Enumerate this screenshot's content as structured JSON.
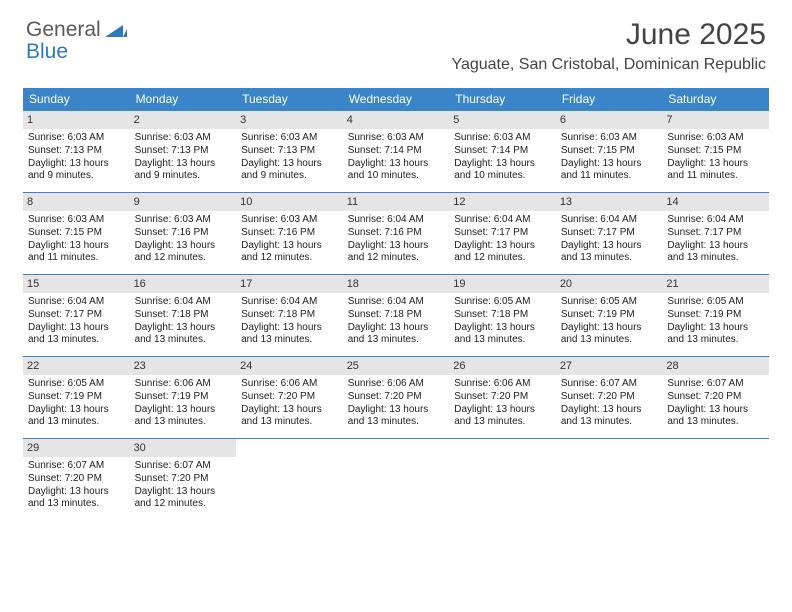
{
  "brand": {
    "part1": "General",
    "part2": "Blue"
  },
  "title": "June 2025",
  "location": "Yaguate, San Cristobal, Dominican Republic",
  "colors": {
    "header_bg": "#3a85c9",
    "daynum_bg": "#e5e5e5",
    "brand_blue": "#2f78bf",
    "rule": "#3a85c9"
  },
  "weekdays": [
    "Sunday",
    "Monday",
    "Tuesday",
    "Wednesday",
    "Thursday",
    "Friday",
    "Saturday"
  ],
  "weeks": [
    [
      {
        "n": "1",
        "sr": "6:03 AM",
        "ss": "7:13 PM",
        "dl": "13 hours and 9 minutes."
      },
      {
        "n": "2",
        "sr": "6:03 AM",
        "ss": "7:13 PM",
        "dl": "13 hours and 9 minutes."
      },
      {
        "n": "3",
        "sr": "6:03 AM",
        "ss": "7:13 PM",
        "dl": "13 hours and 9 minutes."
      },
      {
        "n": "4",
        "sr": "6:03 AM",
        "ss": "7:14 PM",
        "dl": "13 hours and 10 minutes."
      },
      {
        "n": "5",
        "sr": "6:03 AM",
        "ss": "7:14 PM",
        "dl": "13 hours and 10 minutes."
      },
      {
        "n": "6",
        "sr": "6:03 AM",
        "ss": "7:15 PM",
        "dl": "13 hours and 11 minutes."
      },
      {
        "n": "7",
        "sr": "6:03 AM",
        "ss": "7:15 PM",
        "dl": "13 hours and 11 minutes."
      }
    ],
    [
      {
        "n": "8",
        "sr": "6:03 AM",
        "ss": "7:15 PM",
        "dl": "13 hours and 11 minutes."
      },
      {
        "n": "9",
        "sr": "6:03 AM",
        "ss": "7:16 PM",
        "dl": "13 hours and 12 minutes."
      },
      {
        "n": "10",
        "sr": "6:03 AM",
        "ss": "7:16 PM",
        "dl": "13 hours and 12 minutes."
      },
      {
        "n": "11",
        "sr": "6:04 AM",
        "ss": "7:16 PM",
        "dl": "13 hours and 12 minutes."
      },
      {
        "n": "12",
        "sr": "6:04 AM",
        "ss": "7:17 PM",
        "dl": "13 hours and 12 minutes."
      },
      {
        "n": "13",
        "sr": "6:04 AM",
        "ss": "7:17 PM",
        "dl": "13 hours and 13 minutes."
      },
      {
        "n": "14",
        "sr": "6:04 AM",
        "ss": "7:17 PM",
        "dl": "13 hours and 13 minutes."
      }
    ],
    [
      {
        "n": "15",
        "sr": "6:04 AM",
        "ss": "7:17 PM",
        "dl": "13 hours and 13 minutes."
      },
      {
        "n": "16",
        "sr": "6:04 AM",
        "ss": "7:18 PM",
        "dl": "13 hours and 13 minutes."
      },
      {
        "n": "17",
        "sr": "6:04 AM",
        "ss": "7:18 PM",
        "dl": "13 hours and 13 minutes."
      },
      {
        "n": "18",
        "sr": "6:04 AM",
        "ss": "7:18 PM",
        "dl": "13 hours and 13 minutes."
      },
      {
        "n": "19",
        "sr": "6:05 AM",
        "ss": "7:18 PM",
        "dl": "13 hours and 13 minutes."
      },
      {
        "n": "20",
        "sr": "6:05 AM",
        "ss": "7:19 PM",
        "dl": "13 hours and 13 minutes."
      },
      {
        "n": "21",
        "sr": "6:05 AM",
        "ss": "7:19 PM",
        "dl": "13 hours and 13 minutes."
      }
    ],
    [
      {
        "n": "22",
        "sr": "6:05 AM",
        "ss": "7:19 PM",
        "dl": "13 hours and 13 minutes."
      },
      {
        "n": "23",
        "sr": "6:06 AM",
        "ss": "7:19 PM",
        "dl": "13 hours and 13 minutes."
      },
      {
        "n": "24",
        "sr": "6:06 AM",
        "ss": "7:20 PM",
        "dl": "13 hours and 13 minutes."
      },
      {
        "n": "25",
        "sr": "6:06 AM",
        "ss": "7:20 PM",
        "dl": "13 hours and 13 minutes."
      },
      {
        "n": "26",
        "sr": "6:06 AM",
        "ss": "7:20 PM",
        "dl": "13 hours and 13 minutes."
      },
      {
        "n": "27",
        "sr": "6:07 AM",
        "ss": "7:20 PM",
        "dl": "13 hours and 13 minutes."
      },
      {
        "n": "28",
        "sr": "6:07 AM",
        "ss": "7:20 PM",
        "dl": "13 hours and 13 minutes."
      }
    ],
    [
      {
        "n": "29",
        "sr": "6:07 AM",
        "ss": "7:20 PM",
        "dl": "13 hours and 13 minutes."
      },
      {
        "n": "30",
        "sr": "6:07 AM",
        "ss": "7:20 PM",
        "dl": "13 hours and 12 minutes."
      },
      null,
      null,
      null,
      null,
      null
    ]
  ],
  "labels": {
    "sunrise": "Sunrise:",
    "sunset": "Sunset:",
    "daylight": "Daylight:"
  }
}
